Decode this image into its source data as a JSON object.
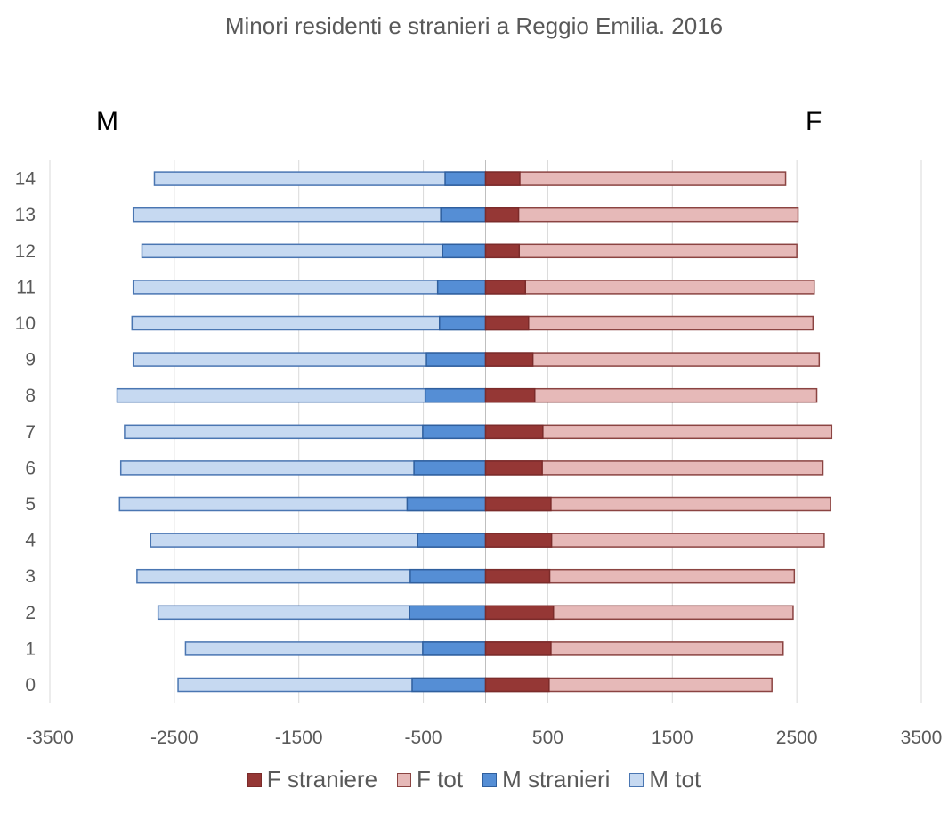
{
  "chart_data": {
    "type": "bar",
    "orientation": "horizontal",
    "title": "Minori residenti e stranieri a Reggio Emilia. 2016",
    "left_label": "M",
    "right_label": "F",
    "categories": [
      "0",
      "1",
      "2",
      "3",
      "4",
      "5",
      "6",
      "7",
      "8",
      "9",
      "10",
      "11",
      "12",
      "13",
      "14"
    ],
    "series": [
      {
        "name": "F straniere",
        "values": [
          510,
          525,
          545,
          515,
          530,
          525,
          455,
          460,
          395,
          380,
          345,
          320,
          270,
          265,
          275
        ]
      },
      {
        "name": "F tot",
        "values": [
          2300,
          2390,
          2470,
          2480,
          2720,
          2770,
          2710,
          2780,
          2660,
          2680,
          2630,
          2640,
          2500,
          2510,
          2410
        ]
      },
      {
        "name": "M stranieri",
        "values": [
          -590,
          -505,
          -610,
          -605,
          -545,
          -630,
          -575,
          -505,
          -485,
          -475,
          -370,
          -385,
          -345,
          -360,
          -325
        ]
      },
      {
        "name": "M tot",
        "values": [
          -2470,
          -2410,
          -2630,
          -2800,
          -2690,
          -2940,
          -2930,
          -2900,
          -2960,
          -2830,
          -2840,
          -2830,
          -2760,
          -2830,
          -2660
        ]
      }
    ],
    "xlim": [
      -3500,
      3500
    ],
    "xticks": [
      "-3500",
      "-2500",
      "-1500",
      "-500",
      "500",
      "1500",
      "2500",
      "3500"
    ],
    "xtick_values": [
      -3500,
      -2500,
      -1500,
      -500,
      500,
      1500,
      2500,
      3500
    ],
    "grid": "vertical",
    "legend_position": "bottom",
    "colors": {
      "F straniere": "#953735",
      "F tot": "#e6b9b8",
      "M stranieri": "#558ed5",
      "M tot": "#c6d9f1",
      "F straniere_border": "#7b2b2a",
      "F tot_border": "#8b4442",
      "M stranieri_border": "#2f5f9e",
      "M tot_border": "#4a76b2",
      "gridline": "#d9d9d9",
      "axis": "#bfbfbf"
    }
  }
}
